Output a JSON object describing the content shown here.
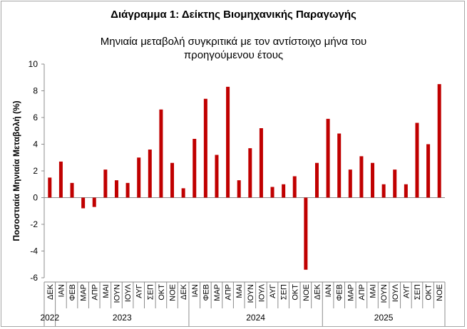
{
  "chart_data": {
    "type": "bar",
    "title": "Διάγραμμα 1: Δείκτης Βιομηχανικής Παραγωγής",
    "subtitle_lines": [
      "Μηνιαία μεταβολή συγκριτικά με τον αντίστοιχο μήνα του",
      "προηγούμενου έτους"
    ],
    "ylabel": "Ποσοστιαία Μηνιαία Μεταβολή (%)",
    "xlabel": "",
    "ylim": [
      -6,
      10
    ],
    "yticks": [
      -6,
      -4,
      -2,
      0,
      2,
      4,
      6,
      8,
      10
    ],
    "grid": false,
    "legend": "none",
    "bar_color": "#c00000",
    "categories": [
      "ΔΕΚ",
      "ΙΑΝ",
      "ΦΕΒ",
      "ΜΑΡ",
      "ΑΠΡ",
      "ΜΑΙ",
      "ΙΟΥΝ",
      "ΙΟΥΛ",
      "ΑΥΓ",
      "ΣΕΠ",
      "ΟΚΤ",
      "ΝΟΕ",
      "ΔΕΚ",
      "ΙΑΝ",
      "ΦΕΒ",
      "ΜΑΡ",
      "ΑΠΡ",
      "ΜΑΙ",
      "ΙΟΥΝ",
      "ΙΟΥΛ",
      "ΑΥΓ",
      "ΣΕΠ",
      "ΟΚΤ",
      "ΝΟΕ",
      "ΔΕΚ",
      "ΙΑΝ",
      "ΦΕΒ",
      "ΜΑΡ",
      "ΑΠΡ",
      "ΜΑΙ",
      "ΙΟΥΝ",
      "ΙΟΥΛ",
      "ΑΥΓ",
      "ΣΕΠ",
      "ΟΚΤ",
      "ΝΟΕ"
    ],
    "values": [
      1.5,
      2.7,
      1.1,
      -0.8,
      -0.7,
      2.1,
      1.3,
      1.1,
      3.0,
      3.6,
      6.6,
      2.6,
      0.7,
      4.4,
      7.4,
      3.2,
      8.3,
      1.3,
      3.7,
      5.2,
      0.8,
      1.0,
      1.6,
      -5.4,
      2.6,
      5.9,
      4.8,
      2.1,
      3.1,
      2.6,
      1.0,
      2.1,
      1.0,
      5.6,
      4.0,
      8.5
    ],
    "year_groups": [
      {
        "label": "2022",
        "count": 1
      },
      {
        "label": "2023",
        "count": 12
      },
      {
        "label": "2024",
        "count": 12
      },
      {
        "label": "2025",
        "count": 11
      }
    ]
  }
}
